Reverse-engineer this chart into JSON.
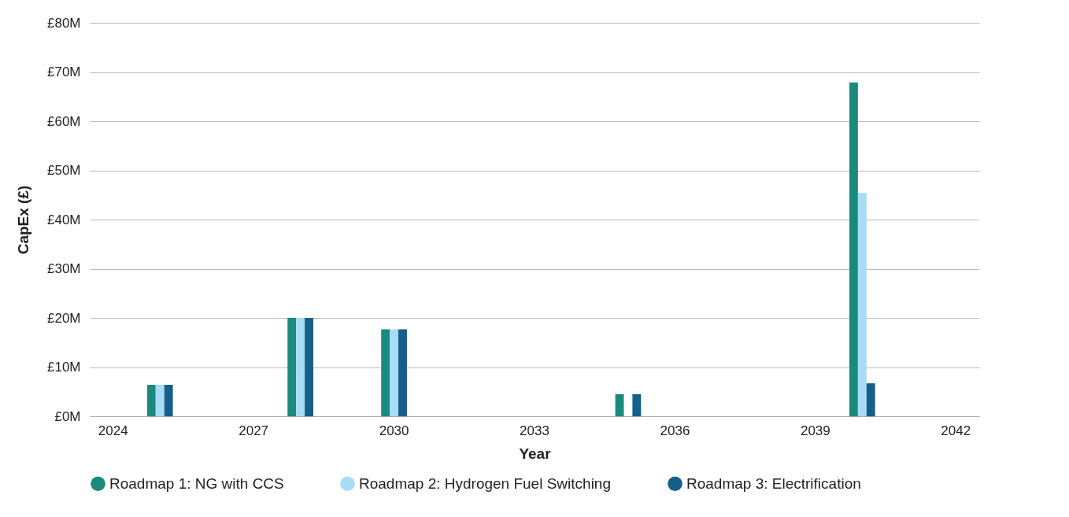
{
  "chart_data": {
    "type": "bar",
    "xlabel": "Year",
    "ylabel": "CapEx (£)",
    "categories": [
      "2024",
      null,
      null,
      "2027",
      null,
      null,
      "2030",
      null,
      null,
      "2033",
      null,
      null,
      "2036",
      null,
      null,
      "2039",
      null,
      null,
      "2042"
    ],
    "series": [
      {
        "name": "Roadmap 1: NG with CCS",
        "color": "#1a8a7e",
        "values": [
          null,
          6.4,
          null,
          null,
          20,
          null,
          17.7,
          null,
          null,
          null,
          null,
          4.5,
          null,
          null,
          null,
          null,
          67.9,
          null,
          null
        ]
      },
      {
        "name": "Roadmap 2: Hydrogen Fuel Switching",
        "color": "#a8dcf5",
        "values": [
          null,
          6.4,
          null,
          null,
          20,
          null,
          17.7,
          null,
          null,
          null,
          null,
          null,
          null,
          null,
          null,
          null,
          45.4,
          null,
          null
        ]
      },
      {
        "name": "Roadmap 3: Electrification",
        "color": "#155f8a",
        "values": [
          null,
          6.4,
          null,
          null,
          20,
          null,
          17.7,
          null,
          null,
          null,
          null,
          4.5,
          null,
          null,
          null,
          null,
          6.7,
          null,
          null
        ]
      }
    ],
    "ylim": [
      0,
      80
    ],
    "yticks": [
      {
        "value": 0,
        "label": "£0M"
      },
      {
        "value": 10,
        "label": "£10M"
      },
      {
        "value": 20,
        "label": "£20M"
      },
      {
        "value": 30,
        "label": "£30M"
      },
      {
        "value": 40,
        "label": "£40M"
      },
      {
        "value": 50,
        "label": "£50M"
      },
      {
        "value": 60,
        "label": "£60M"
      },
      {
        "value": 70,
        "label": "£70M"
      },
      {
        "value": 80,
        "label": "£80M"
      }
    ],
    "grid": "y",
    "legend": "bottom"
  }
}
